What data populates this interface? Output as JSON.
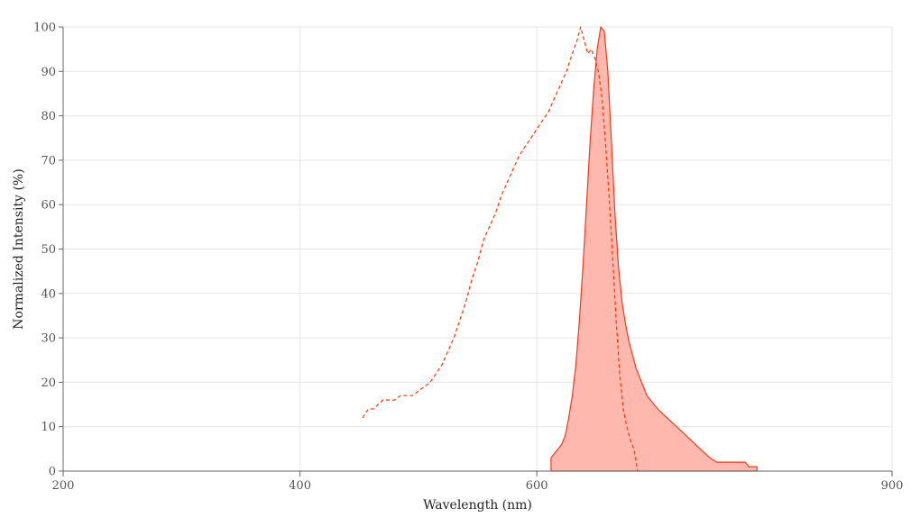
{
  "chart_data": {
    "type": "area",
    "xlabel": "Wavelength (nm)",
    "ylabel": "Normalized Intensity (%)",
    "xlim": [
      200,
      900
    ],
    "ylim": [
      0,
      100
    ],
    "x_ticks": [
      200,
      400,
      600,
      900
    ],
    "y_ticks": [
      0,
      10,
      20,
      30,
      40,
      50,
      60,
      70,
      80,
      90,
      100
    ],
    "grid": true,
    "colors": {
      "excitation": "#ff3300",
      "emission_line": "#ee3a1e",
      "emission_fill": "#ffb8ad"
    },
    "series": [
      {
        "style": "dashed-line",
        "points": [
          [
            453,
            12
          ],
          [
            455,
            13
          ],
          [
            458,
            14
          ],
          [
            462,
            14
          ],
          [
            466,
            15
          ],
          [
            470,
            16
          ],
          [
            475,
            16
          ],
          [
            480,
            16
          ],
          [
            485,
            17
          ],
          [
            490,
            17
          ],
          [
            495,
            17
          ],
          [
            500,
            18
          ],
          [
            505,
            19
          ],
          [
            510,
            20
          ],
          [
            515,
            22
          ],
          [
            520,
            24
          ],
          [
            525,
            27
          ],
          [
            530,
            30
          ],
          [
            535,
            34
          ],
          [
            540,
            38
          ],
          [
            545,
            43
          ],
          [
            550,
            47
          ],
          [
            555,
            52
          ],
          [
            560,
            55
          ],
          [
            565,
            58
          ],
          [
            570,
            62
          ],
          [
            575,
            65
          ],
          [
            580,
            68
          ],
          [
            585,
            71
          ],
          [
            590,
            73
          ],
          [
            595,
            75
          ],
          [
            600,
            77
          ],
          [
            605,
            79
          ],
          [
            610,
            81
          ],
          [
            615,
            84
          ],
          [
            620,
            87
          ],
          [
            625,
            90
          ],
          [
            630,
            94
          ],
          [
            634,
            97
          ],
          [
            637,
            100
          ],
          [
            640,
            97
          ],
          [
            643,
            94
          ],
          [
            646,
            95
          ],
          [
            649,
            93
          ],
          [
            652,
            90
          ],
          [
            655,
            84
          ],
          [
            658,
            74
          ],
          [
            661,
            62
          ],
          [
            664,
            48
          ],
          [
            667,
            34
          ],
          [
            670,
            22
          ],
          [
            673,
            14
          ],
          [
            676,
            10
          ],
          [
            679,
            7
          ],
          [
            682,
            5
          ],
          [
            684,
            2
          ],
          [
            685,
            0
          ]
        ]
      },
      {
        "style": "filled-area",
        "points": [
          [
            612,
            0
          ],
          [
            612,
            3
          ],
          [
            615,
            4
          ],
          [
            618,
            5
          ],
          [
            621,
            6
          ],
          [
            624,
            8
          ],
          [
            627,
            12
          ],
          [
            630,
            17
          ],
          [
            633,
            24
          ],
          [
            636,
            34
          ],
          [
            639,
            46
          ],
          [
            642,
            60
          ],
          [
            645,
            74
          ],
          [
            648,
            86
          ],
          [
            651,
            95
          ],
          [
            654,
            100
          ],
          [
            657,
            99
          ],
          [
            660,
            90
          ],
          [
            663,
            74
          ],
          [
            666,
            58
          ],
          [
            669,
            46
          ],
          [
            672,
            38
          ],
          [
            675,
            33
          ],
          [
            678,
            29
          ],
          [
            681,
            26
          ],
          [
            684,
            23
          ],
          [
            687,
            21
          ],
          [
            690,
            19
          ],
          [
            693,
            17
          ],
          [
            696,
            16
          ],
          [
            699,
            15
          ],
          [
            702,
            14
          ],
          [
            706,
            13
          ],
          [
            710,
            12
          ],
          [
            714,
            11
          ],
          [
            718,
            10
          ],
          [
            722,
            9
          ],
          [
            726,
            8
          ],
          [
            730,
            7
          ],
          [
            734,
            6
          ],
          [
            738,
            5
          ],
          [
            742,
            4
          ],
          [
            746,
            3
          ],
          [
            752,
            2
          ],
          [
            758,
            2
          ],
          [
            764,
            2
          ],
          [
            770,
            2
          ],
          [
            776,
            2
          ],
          [
            779,
            1
          ],
          [
            786,
            1
          ],
          [
            786,
            0
          ]
        ]
      }
    ]
  }
}
